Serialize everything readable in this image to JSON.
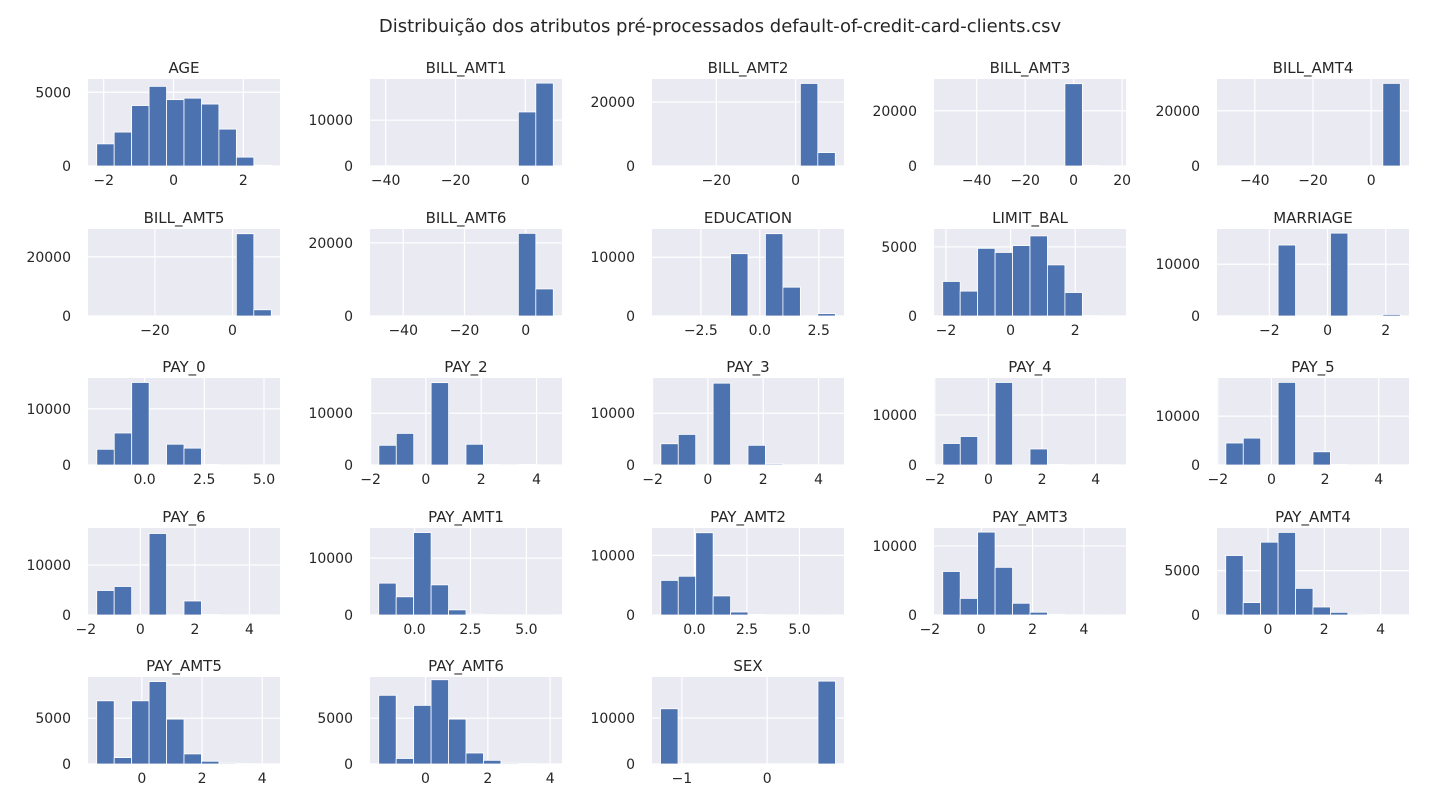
{
  "figure_title": "Distribuição dos atributos pré-processados default-of-credit-card-clients.csv",
  "colors": {
    "bar": "#4c72b0",
    "background": "#eaeaf2",
    "grid": "#ffffff"
  },
  "chart_data": [
    {
      "type": "bar",
      "title": "AGE",
      "range": [
        -2.2,
        2.8
      ],
      "xlim": [
        -2.45,
        3.05
      ],
      "ylim": [
        0,
        5900
      ],
      "xticks": [
        -2,
        0,
        2
      ],
      "xtick_labels": [
        "−2",
        "0",
        "2"
      ],
      "yticks": [
        0,
        5000
      ],
      "ytick_labels": [
        "0",
        "5000"
      ],
      "values": [
        1500,
        2300,
        4100,
        5400,
        4500,
        4600,
        4200,
        2500,
        600,
        50
      ]
    },
    {
      "type": "bar",
      "title": "BILL_AMT1",
      "range": [
        -42,
        8
      ],
      "xlim": [
        -44.5,
        10.5
      ],
      "ylim": [
        0,
        19000
      ],
      "xticks": [
        -40,
        -20,
        0
      ],
      "xtick_labels": [
        "−40",
        "−20",
        "0"
      ],
      "yticks": [
        0,
        10000
      ],
      "ytick_labels": [
        "0",
        "10000"
      ],
      "values": [
        0,
        0,
        0,
        0,
        0,
        0,
        0,
        0,
        11800,
        18100
      ]
    },
    {
      "type": "bar",
      "title": "BILL_AMT2",
      "range": [
        -34,
        10
      ],
      "xlim": [
        -36.2,
        12.2
      ],
      "ylim": [
        0,
        27200
      ],
      "xticks": [
        -20,
        0
      ],
      "xtick_labels": [
        "−20",
        "0"
      ],
      "yticks": [
        0,
        20000
      ],
      "ytick_labels": [
        "0",
        "20000"
      ],
      "values": [
        0,
        0,
        0,
        0,
        0,
        0,
        0,
        0,
        25800,
        4200
      ]
    },
    {
      "type": "bar",
      "title": "BILL_AMT3",
      "range": [
        -54,
        18
      ],
      "xlim": [
        -57.6,
        21.6
      ],
      "ylim": [
        0,
        31500
      ],
      "xticks": [
        -40,
        -20,
        0,
        20
      ],
      "xtick_labels": [
        "−40",
        "−20",
        "0",
        "20"
      ],
      "yticks": [
        0,
        20000
      ],
      "ytick_labels": [
        "0",
        "20000"
      ],
      "values": [
        0,
        0,
        0,
        0,
        0,
        0,
        0,
        29800,
        200,
        0
      ]
    },
    {
      "type": "bar",
      "title": "BILL_AMT4",
      "range": [
        -50,
        10
      ],
      "xlim": [
        -53,
        13
      ],
      "ylim": [
        0,
        31500
      ],
      "xticks": [
        -40,
        -20,
        0
      ],
      "xtick_labels": [
        "−40",
        "−20",
        "0"
      ],
      "yticks": [
        0,
        20000
      ],
      "ytick_labels": [
        "0",
        "20000"
      ],
      "values": [
        0,
        0,
        0,
        0,
        0,
        0,
        0,
        0,
        0,
        29900
      ]
    },
    {
      "type": "bar",
      "title": "BILL_AMT5",
      "range": [
        -35,
        10
      ],
      "xlim": [
        -37.25,
        12.25
      ],
      "ylim": [
        0,
        29400
      ],
      "xticks": [
        -20,
        0
      ],
      "xtick_labels": [
        "−20",
        "0"
      ],
      "yticks": [
        0,
        20000
      ],
      "ytick_labels": [
        "0",
        "20000"
      ],
      "values": [
        0,
        0,
        0,
        0,
        0,
        0,
        0,
        0,
        27800,
        2100
      ]
    },
    {
      "type": "bar",
      "title": "BILL_AMT6",
      "range": [
        -48,
        9
      ],
      "xlim": [
        -50.85,
        11.85
      ],
      "ylim": [
        0,
        23800
      ],
      "xticks": [
        -40,
        -20,
        0
      ],
      "xtick_labels": [
        "−40",
        "−20",
        "0"
      ],
      "yticks": [
        0,
        20000
      ],
      "ytick_labels": [
        "0",
        "20000"
      ],
      "values": [
        0,
        0,
        0,
        0,
        0,
        0,
        0,
        0,
        22600,
        7400
      ]
    },
    {
      "type": "bar",
      "title": "EDUCATION",
      "range": [
        -4.2,
        3.2
      ],
      "xlim": [
        -4.57,
        3.57
      ],
      "ylim": [
        0,
        14800
      ],
      "xticks": [
        -2.5,
        0,
        2.5
      ],
      "xtick_labels": [
        "−2.5",
        "0.0",
        "2.5"
      ],
      "yticks": [
        0,
        10000
      ],
      "ytick_labels": [
        "0",
        "10000"
      ],
      "values": [
        20,
        0,
        0,
        0,
        10600,
        0,
        14000,
        4900,
        0,
        400
      ]
    },
    {
      "type": "bar",
      "title": "LIMIT_BAL",
      "range": [
        -2.1,
        3.3
      ],
      "xlim": [
        -2.37,
        3.57
      ],
      "ylim": [
        0,
        6300
      ],
      "xticks": [
        -2,
        0,
        2
      ],
      "xtick_labels": [
        "−2",
        "0",
        "2"
      ],
      "yticks": [
        0,
        5000
      ],
      "ytick_labels": [
        "0",
        "5000"
      ],
      "values": [
        2500,
        1800,
        4900,
        4600,
        5100,
        5800,
        3700,
        1700,
        30,
        10
      ]
    },
    {
      "type": "bar",
      "title": "MARRIAGE",
      "range": [
        -3.5,
        2.5
      ],
      "xlim": [
        -3.8,
        2.8
      ],
      "ylim": [
        0,
        16800
      ],
      "xticks": [
        -2,
        0,
        2
      ],
      "xtick_labels": [
        "−2",
        "0",
        "2"
      ],
      "yticks": [
        0,
        10000
      ],
      "ytick_labels": [
        "0",
        "10000"
      ],
      "values": [
        50,
        0,
        0,
        13700,
        0,
        0,
        16000,
        0,
        0,
        300
      ]
    },
    {
      "type": "bar",
      "title": "PAY_0",
      "range": [
        -2,
        5.3
      ],
      "xlim": [
        -2.37,
        5.67
      ],
      "ylim": [
        0,
        15500
      ],
      "xticks": [
        0,
        2.5,
        5
      ],
      "xtick_labels": [
        "0.0",
        "2.5",
        "5.0"
      ],
      "yticks": [
        0,
        10000
      ],
      "ytick_labels": [
        "0",
        "10000"
      ],
      "values": [
        2800,
        5700,
        14700,
        0,
        3700,
        3000,
        100,
        20,
        10,
        20
      ]
    },
    {
      "type": "bar",
      "title": "PAY_2",
      "range": [
        -1.7,
        4.6
      ],
      "xlim": [
        -2.02,
        4.92
      ],
      "ylim": [
        0,
        16800
      ],
      "xticks": [
        -2,
        0,
        2,
        4
      ],
      "xtick_labels": [
        "−2",
        "0",
        "2",
        "4"
      ],
      "yticks": [
        0,
        10000
      ],
      "ytick_labels": [
        "0",
        "10000"
      ],
      "values": [
        3800,
        6100,
        0,
        15900,
        0,
        4000,
        80,
        0,
        100,
        40
      ]
    },
    {
      "type": "bar",
      "title": "PAY_3",
      "range": [
        -1.7,
        4.6
      ],
      "xlim": [
        -2.02,
        4.92
      ],
      "ylim": [
        0,
        16800
      ],
      "xticks": [
        -2,
        0,
        2,
        4
      ],
      "xtick_labels": [
        "−2",
        "0",
        "2",
        "4"
      ],
      "yticks": [
        0,
        10000
      ],
      "ytick_labels": [
        "0",
        "10000"
      ],
      "values": [
        4100,
        5900,
        0,
        15800,
        0,
        3800,
        200,
        0,
        50,
        40
      ]
    },
    {
      "type": "bar",
      "title": "PAY_4",
      "range": [
        -1.7,
        4.8
      ],
      "xlim": [
        -2.03,
        5.13
      ],
      "ylim": [
        0,
        17400
      ],
      "xticks": [
        -2,
        0,
        2,
        4
      ],
      "xtick_labels": [
        "−2",
        "0",
        "2",
        "4"
      ],
      "yticks": [
        0,
        10000
      ],
      "ytick_labels": [
        "0",
        "10000"
      ],
      "values": [
        4300,
        5700,
        0,
        16500,
        0,
        3200,
        100,
        0,
        50,
        60
      ]
    },
    {
      "type": "bar",
      "title": "PAY_5",
      "range": [
        -1.7,
        4.8
      ],
      "xlim": [
        -2.03,
        5.13
      ],
      "ylim": [
        0,
        17800
      ],
      "xticks": [
        -2,
        0,
        2,
        4
      ],
      "xtick_labels": [
        "−2",
        "0",
        "2",
        "4"
      ],
      "yticks": [
        0,
        10000
      ],
      "ytick_labels": [
        "0",
        "10000"
      ],
      "values": [
        4500,
        5500,
        0,
        16900,
        0,
        2700,
        100,
        0,
        30,
        40
      ]
    },
    {
      "type": "bar",
      "title": "PAY_6",
      "range": [
        -1.6,
        4.8
      ],
      "xlim": [
        -1.92,
        5.12
      ],
      "ylim": [
        0,
        17400
      ],
      "xticks": [
        -2,
        0,
        2,
        4
      ],
      "xtick_labels": [
        "−2",
        "0",
        "2",
        "4"
      ],
      "yticks": [
        0,
        10000
      ],
      "ytick_labels": [
        "0",
        "10000"
      ],
      "values": [
        4900,
        5700,
        0,
        16300,
        0,
        2800,
        100,
        0,
        20,
        30
      ]
    },
    {
      "type": "bar",
      "title": "PAY_AMT1",
      "range": [
        -1.6,
        6.2
      ],
      "xlim": [
        -1.99,
        6.59
      ],
      "ylim": [
        0,
        15300
      ],
      "xticks": [
        0,
        2.5,
        5
      ],
      "xtick_labels": [
        "0.0",
        "2.5",
        "5.0"
      ],
      "yticks": [
        0,
        10000
      ],
      "ytick_labels": [
        "0",
        "10000"
      ],
      "values": [
        5600,
        3200,
        14500,
        5300,
        900,
        150,
        50,
        20,
        10,
        10
      ]
    },
    {
      "type": "bar",
      "title": "PAY_AMT2",
      "range": [
        -1.6,
        6.7
      ],
      "xlim": [
        -2.02,
        7.12
      ],
      "ylim": [
        0,
        14600
      ],
      "xticks": [
        0,
        2.5,
        5
      ],
      "xtick_labels": [
        "0.0",
        "2.5",
        "5.0"
      ],
      "yticks": [
        0,
        10000
      ],
      "ytick_labels": [
        "0",
        "10000"
      ],
      "values": [
        5800,
        6500,
        13800,
        3200,
        500,
        100,
        40,
        20,
        10,
        10
      ]
    },
    {
      "type": "bar",
      "title": "PAY_AMT3",
      "range": [
        -1.5,
        5.3
      ],
      "xlim": [
        -1.84,
        5.64
      ],
      "ylim": [
        0,
        12600
      ],
      "xticks": [
        -2,
        0,
        2,
        4
      ],
      "xtick_labels": [
        "−2",
        "0",
        "2",
        "4"
      ],
      "yticks": [
        0,
        10000
      ],
      "ytick_labels": [
        "0",
        "10000"
      ],
      "values": [
        6300,
        2400,
        12000,
        6900,
        1700,
        400,
        100,
        30,
        10,
        10
      ]
    },
    {
      "type": "bar",
      "title": "PAY_AMT4",
      "range": [
        -1.5,
        4.7
      ],
      "xlim": [
        -1.81,
        5.01
      ],
      "ylim": [
        0,
        9800
      ],
      "xticks": [
        0,
        2,
        4
      ],
      "xtick_labels": [
        "0",
        "2",
        "4"
      ],
      "yticks": [
        0,
        5000
      ],
      "ytick_labels": [
        "0",
        "5000"
      ],
      "values": [
        6700,
        1400,
        8200,
        9300,
        3000,
        900,
        300,
        100,
        40,
        20
      ]
    },
    {
      "type": "bar",
      "title": "PAY_AMT5",
      "range": [
        -1.5,
        4.3
      ],
      "xlim": [
        -1.79,
        4.59
      ],
      "ylim": [
        0,
        9500
      ],
      "xticks": [
        0,
        2,
        4
      ],
      "xtick_labels": [
        "0",
        "2",
        "4"
      ],
      "yticks": [
        0,
        5000
      ],
      "ytick_labels": [
        "0",
        "5000"
      ],
      "values": [
        6900,
        700,
        6900,
        9000,
        4900,
        1100,
        300,
        100,
        40,
        20
      ]
    },
    {
      "type": "bar",
      "title": "PAY_AMT6",
      "range": [
        -1.5,
        4.1
      ],
      "xlim": [
        -1.78,
        4.38
      ],
      "ylim": [
        0,
        9500
      ],
      "xticks": [
        0,
        2,
        4
      ],
      "xtick_labels": [
        "0",
        "2",
        "4"
      ],
      "yticks": [
        0,
        5000
      ],
      "ytick_labels": [
        "0",
        "5000"
      ],
      "values": [
        7500,
        600,
        6400,
        9200,
        4900,
        1200,
        400,
        100,
        40,
        20
      ]
    },
    {
      "type": "bar",
      "title": "SEX",
      "range": [
        -1.25,
        0.8
      ],
      "xlim": [
        -1.35,
        0.9
      ],
      "ylim": [
        0,
        18900
      ],
      "xticks": [
        -1,
        0
      ],
      "xtick_labels": [
        "−1",
        "0"
      ],
      "yticks": [
        0,
        10000
      ],
      "ytick_labels": [
        "0",
        "10000"
      ],
      "values": [
        12000,
        0,
        0,
        0,
        0,
        0,
        0,
        0,
        0,
        18000
      ]
    }
  ]
}
